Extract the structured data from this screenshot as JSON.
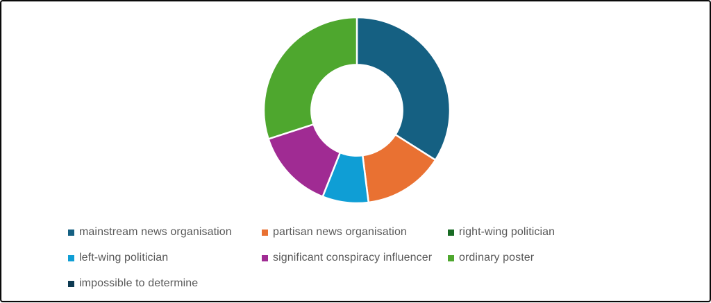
{
  "chart_data": {
    "type": "pie",
    "subtype": "donut",
    "title": "",
    "units": "percent",
    "start_angle_deg": 0,
    "direction": "clockwise",
    "hole_ratio": 0.49,
    "gap_color": "#ffffff",
    "legend_position": "bottom",
    "legend_text_color": "#595959",
    "series": [
      {
        "name": "mainstream news organisation",
        "value": 34,
        "color": "#156082"
      },
      {
        "name": "partisan news organisation",
        "value": 14,
        "color": "#E97132"
      },
      {
        "name": "right-wing politician",
        "value": 0,
        "color": "#196B24"
      },
      {
        "name": "left-wing politician",
        "value": 8,
        "color": "#0F9ED5"
      },
      {
        "name": "significant conspiracy influencer",
        "value": 14,
        "color": "#A02B93"
      },
      {
        "name": "ordinary poster",
        "value": 30,
        "color": "#4EA72E"
      },
      {
        "name": "impossible to determine",
        "value": 0,
        "color": "#0E3A52"
      }
    ]
  }
}
